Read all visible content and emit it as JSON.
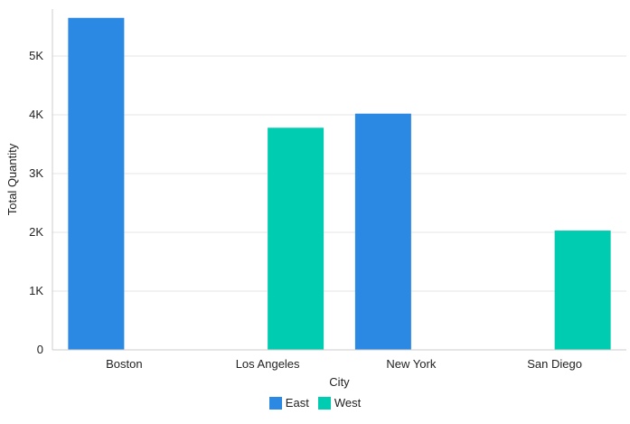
{
  "chart_data": {
    "type": "bar",
    "xlabel": "City",
    "ylabel": "Total Quantity",
    "categories": [
      "Boston",
      "Los Angeles",
      "New York",
      "San Diego"
    ],
    "series": [
      {
        "name": "East",
        "color": "#2b88e3",
        "values": [
          5650,
          null,
          4020,
          null
        ]
      },
      {
        "name": "West",
        "color": "#00ccb1",
        "values": [
          null,
          3780,
          null,
          2030
        ]
      }
    ],
    "ylim": [
      0,
      5800
    ],
    "yticks": [
      0,
      1000,
      2000,
      3000,
      4000,
      5000
    ],
    "ytick_labels": [
      "0",
      "1K",
      "2K",
      "3K",
      "4K",
      "5K"
    ],
    "grid": true,
    "legend_position": "bottom-center"
  }
}
